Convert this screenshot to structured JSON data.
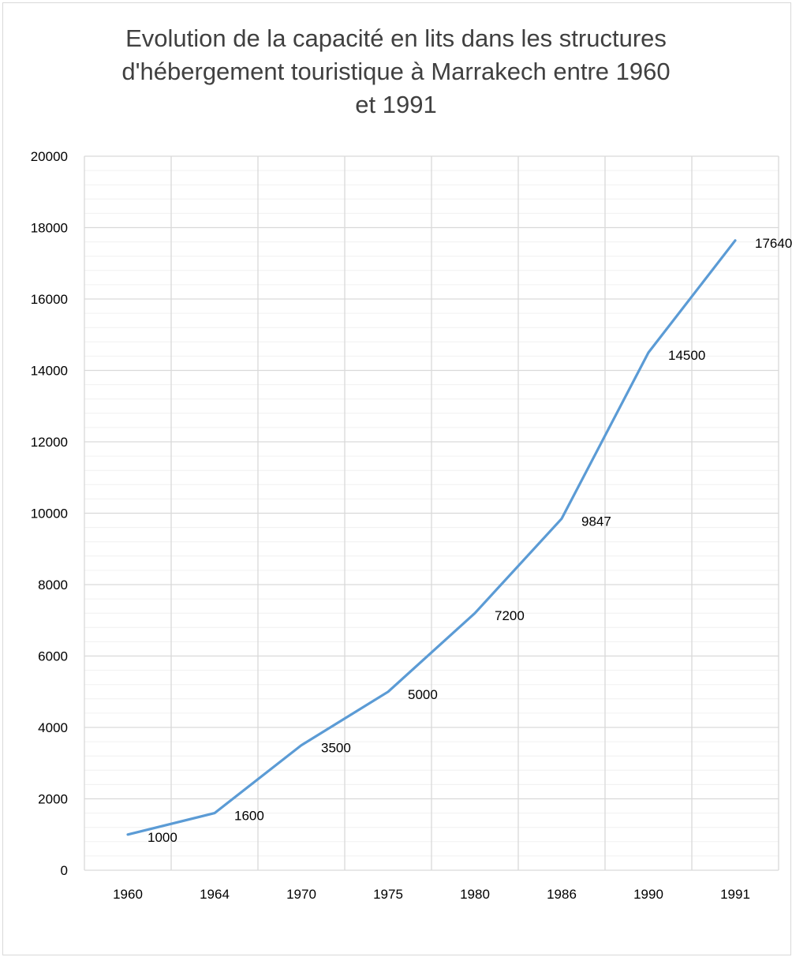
{
  "chart_data": {
    "type": "line",
    "title_lines": [
      "Evolution de la capacité en lits dans les structures",
      "d'hébergement touristique à Marrakech entre 1960",
      "et 1991"
    ],
    "categories": [
      "1960",
      "1964",
      "1970",
      "1975",
      "1980",
      "1986",
      "1990",
      "1991"
    ],
    "series": [
      {
        "values": [
          1000,
          1600,
          3500,
          5000,
          7200,
          9847,
          14500,
          17640
        ]
      }
    ],
    "data_labels": [
      "1000",
      "1600",
      "3500",
      "5000",
      "7200",
      "9847",
      "14500",
      "17640"
    ],
    "ylim": [
      0,
      20000
    ],
    "y_major_step": 2000,
    "y_minor_step": 400,
    "y_ticks": [
      "0",
      "2000",
      "4000",
      "6000",
      "8000",
      "10000",
      "12000",
      "14000",
      "16000",
      "18000",
      "20000"
    ],
    "xlabel": "",
    "ylabel": "",
    "grid": true,
    "legend": "none",
    "colors": {
      "line": "#5b9bd5",
      "major_grid": "#d9d9d9",
      "minor_grid": "#f0f0f0"
    }
  }
}
